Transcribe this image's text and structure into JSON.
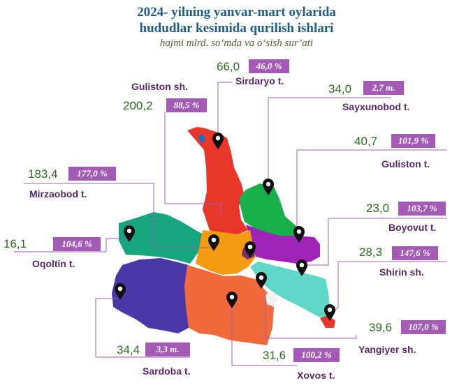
{
  "header": {
    "title_line1": "2024- yilning yanvar-mart oylarida",
    "title_line2": "hududlar kesimida qurilish ishlari",
    "subtitle": "hajmi mlrd. so‘mda va o‘sish sur’ati"
  },
  "colors": {
    "value_text": "#2e6b1e",
    "badge_bg": "#a35bb5",
    "name_text": "#5a2a66",
    "title_text": "#1f5e8c"
  },
  "regions": {
    "sirdaryo": {
      "name": "Sirdaryo t.",
      "value": "66,0",
      "growth": "46,0 %",
      "fill": "#e8362b"
    },
    "guliston_sh": {
      "name": "Guliston sh.",
      "value": "200,2",
      "growth": "88,5 %",
      "fill": "#7a2a6e"
    },
    "sayxunobod": {
      "name": "Sayxunobod t.",
      "value": "34,0",
      "growth": "2,7 m.",
      "fill": "#18b04a"
    },
    "guliston_t": {
      "name": "Guliston t.",
      "value": "40,7",
      "growth": "101,9 %",
      "fill": "#a023b8"
    },
    "mirzaobod": {
      "name": "Mirzaobod t.",
      "value": "183,4",
      "growth": "177,0 %",
      "fill": "#f59b12"
    },
    "boyovut": {
      "name": "Boyovut t.",
      "value": "23,0",
      "growth": "103,7 %",
      "fill": "#5fd7c8"
    },
    "oqoltin": {
      "name": "Oqoltin t.",
      "value": "16,1",
      "growth": "104,6 %",
      "fill": "#17a57f"
    },
    "shirin": {
      "name": "Shirin sh.",
      "value": "28,3",
      "growth": "147,6 %",
      "fill": "#f2f2f2"
    },
    "sardoba": {
      "name": "Sardoba t.",
      "value": "34,4",
      "growth": "3,3 m.",
      "fill": "#4a38a8"
    },
    "yangiyer": {
      "name": "Yangiyer sh.",
      "value": "39,6",
      "growth": "107,0 %",
      "fill": "#e8362b"
    },
    "xovos": {
      "name": "Xovos t.",
      "value": "31,6",
      "growth": "100,2 %",
      "fill": "#f26a3c"
    }
  }
}
